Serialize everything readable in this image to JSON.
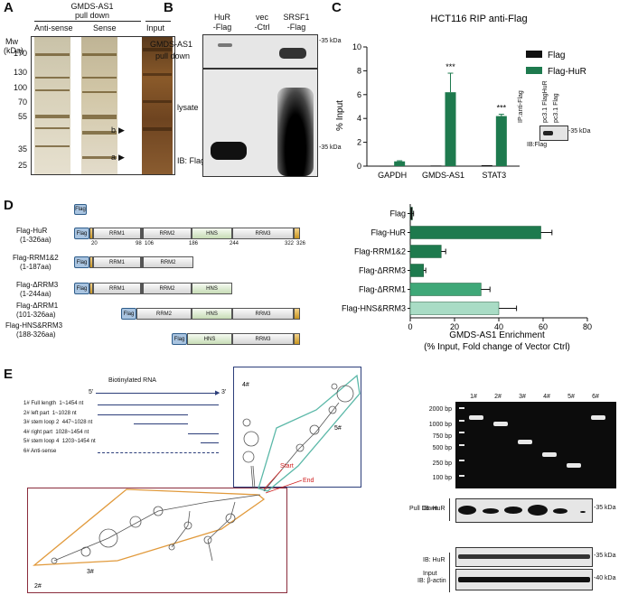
{
  "panels": {
    "A": "A",
    "B": "B",
    "C": "C",
    "D": "D",
    "E": "E"
  },
  "panelA": {
    "title": "GMDS-AS1",
    "title2": "pull down",
    "lanes": [
      "Anti-sense",
      "Sense",
      "Input"
    ],
    "mw_label": "Mw",
    "mw_unit": "(kDa)",
    "markers": [
      "170",
      "130",
      "100",
      "70",
      "55",
      "35",
      "25"
    ],
    "arrow_labels": [
      "b",
      "a"
    ]
  },
  "panelB": {
    "lanes": [
      "HuR",
      "-Flag",
      "vec",
      "-Ctrl",
      "SRSF1",
      "-Flag"
    ],
    "row1": "GMDS-AS1",
    "row1b": "pull down",
    "row2": "lysate",
    "ib": "IB: Flag",
    "marker": "-35 kDa"
  },
  "panelC": {
    "inset_ip": "IP:anti-Flag",
    "inset_lanes": [
      "pc3.1 FlagHuR",
      "pc3.1 Flag"
    ],
    "inset_ib": "IB:Flag",
    "inset_marker": "-35 kDa"
  },
  "panelD": {
    "constructs": [
      {
        "name": "Flag-HuR",
        "range": "(1-326aa)"
      },
      {
        "name": "Flag-RRM1&2",
        "range": "(1-187aa)"
      },
      {
        "name": "Flag-ΔRRM3",
        "range": "(1-244aa)"
      },
      {
        "name": "Flag-ΔRRM1",
        "range": "(101-326aa)"
      },
      {
        "name": "Flag-HNS&RRM3",
        "range": "(188-326aa)"
      }
    ],
    "flag": "Flag",
    "domains": {
      "rrm1": "RRM1",
      "rrm2": "RRM2",
      "hns": "HNS",
      "rrm3": "RRM3"
    },
    "positions": [
      "20",
      "98",
      "106",
      "186",
      "244",
      "322",
      "326"
    ]
  },
  "panelE": {
    "biotin_label": "Biotinylated RNA",
    "five": "5'",
    "three": "3'",
    "fragments": [
      {
        "id": "1#",
        "name": "Full length",
        "range": "1~1454 nt"
      },
      {
        "id": "2#",
        "name": "left part",
        "range": "1~1028 nt"
      },
      {
        "id": "3#",
        "name": "stem loop 2",
        "range": "447~1028 nt"
      },
      {
        "id": "4#",
        "name": "right part",
        "range": "1028~1454 nt"
      },
      {
        "id": "5#",
        "name": "stem loop 4",
        "range": "1203~1454 nt"
      },
      {
        "id": "6#",
        "name": "Anti-sense",
        "range": ""
      }
    ],
    "struct_labels": {
      "four": "4#",
      "five": "5#",
      "three": "3#",
      "two": "2#",
      "start": "Start",
      "end": "End"
    },
    "gel_lanes": [
      "1#",
      "2#",
      "3#",
      "4#",
      "5#",
      "6#"
    ],
    "gel_ladder": [
      "2000 bp",
      "1000 bp",
      "750 bp",
      "500 bp",
      "250 bp",
      "100 bp"
    ],
    "pulldown": "Pull Down",
    "input": "Input",
    "ib_hur": "IB: HuR",
    "ib_hur2": "IB: HuR",
    "ib_actin": "IB: β-actin",
    "m35a": "-35 kDa",
    "m35b": "-35 kDa",
    "m40": "-40 kDa"
  },
  "chart_data": [
    {
      "type": "bar",
      "title": "HCT116 RIP anti-Flag",
      "categories": [
        "GAPDH",
        "GMDS-AS1",
        "STAT3"
      ],
      "series": [
        {
          "name": "Flag",
          "color": "#111111",
          "values": [
            0.02,
            0.05,
            0.08
          ],
          "errors": [
            0.0,
            0.0,
            0.0
          ]
        },
        {
          "name": "Flag-HuR",
          "color": "#1e7a4e",
          "values": [
            0.4,
            6.2,
            4.2
          ],
          "errors": [
            0.05,
            1.6,
            0.15
          ]
        }
      ],
      "annotations": [
        "***",
        "***"
      ],
      "ylabel": "% Input",
      "ylim": [
        0,
        10
      ],
      "yticks": [
        "0",
        "2",
        "4",
        "6",
        "8",
        "10"
      ],
      "legend": "top-right"
    },
    {
      "type": "bar",
      "orientation": "horizontal",
      "categories": [
        "Flag",
        "Flag-HuR",
        "Flag-RRM1&2",
        "Flag-ΔRRM3",
        "Flag-ΔRRM1",
        "Flag-HNS&RRM3"
      ],
      "values": [
        1,
        59,
        14,
        6,
        32,
        40
      ],
      "errors": [
        0.5,
        5,
        2,
        1,
        4,
        8
      ],
      "colors": [
        "#111111",
        "#1e7a4e",
        "#1e7a4e",
        "#1e7a4e",
        "#3fa878",
        "#a9dcc5"
      ],
      "xlabel": "GMDS-AS1 Enrichment",
      "xlabel2": "(% Input, Fold change of Vector Ctrl)",
      "xlim": [
        0,
        80
      ],
      "xticks": [
        "0",
        "20",
        "40",
        "60",
        "80"
      ]
    }
  ]
}
